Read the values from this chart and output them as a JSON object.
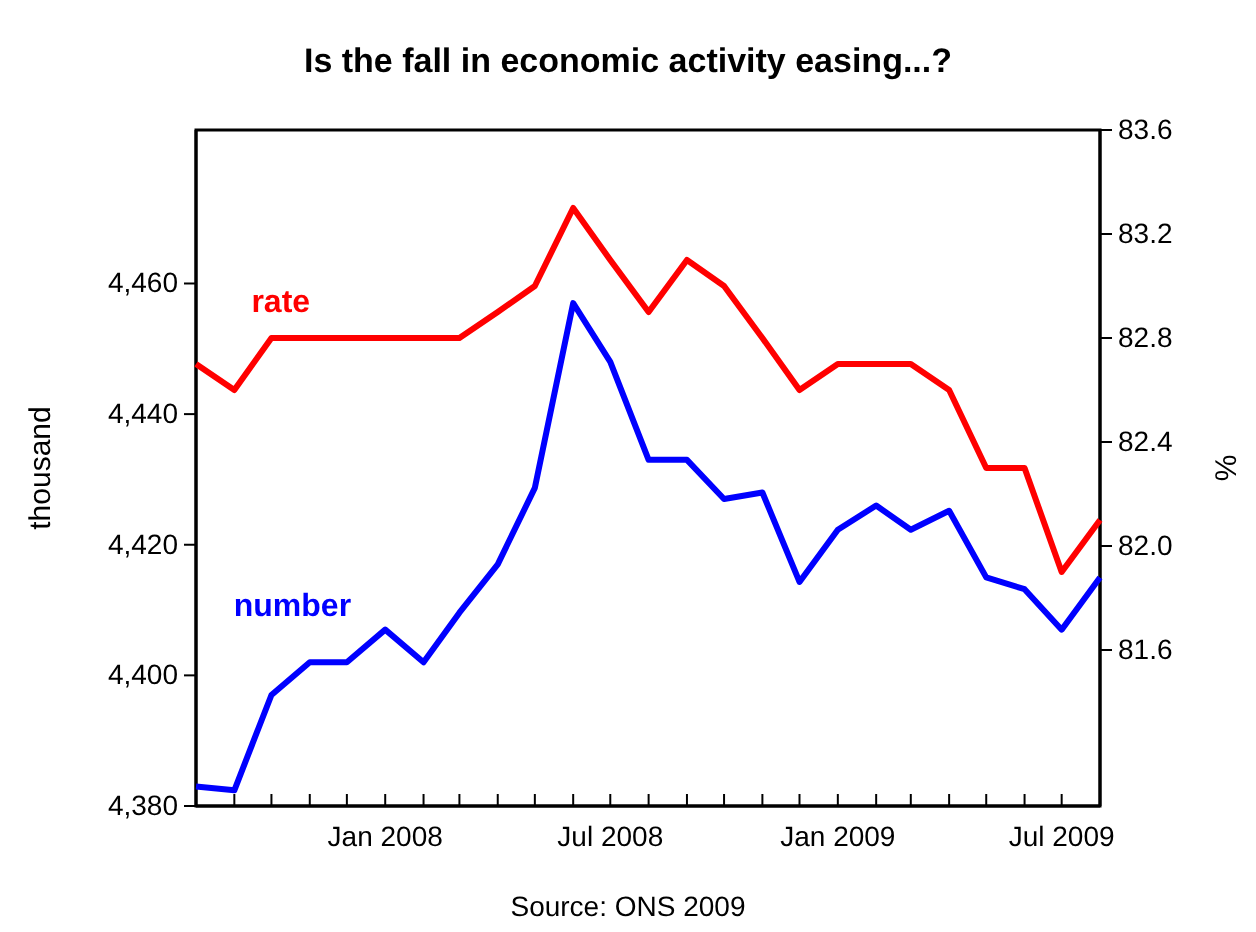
{
  "chart_data": {
    "type": "line",
    "title": "Is the fall in economic activity easing...?",
    "ylabel": "thousand",
    "y2label": "%",
    "annotations": [
      "Source: ONS 2009"
    ],
    "x": [
      "2007-08",
      "2007-09",
      "2007-10",
      "2007-11",
      "2007-12",
      "2008-01",
      "2008-02",
      "2008-03",
      "2008-04",
      "2008-05",
      "2008-06",
      "2008-07",
      "2008-08",
      "2008-09",
      "2008-10",
      "2008-11",
      "2008-12",
      "2009-01",
      "2009-02",
      "2009-03",
      "2009-04",
      "2009-05",
      "2009-06",
      "2009-07",
      "2009-08"
    ],
    "series": [
      {
        "name": "rate",
        "color": "#ff0000",
        "axis": "y2",
        "values": [
          82.7,
          82.6,
          82.8,
          82.8,
          82.8,
          82.8,
          82.8,
          82.8,
          82.9,
          83.0,
          83.3,
          83.1,
          82.9,
          83.1,
          83.0,
          82.8,
          82.6,
          82.7,
          82.7,
          82.7,
          82.6,
          82.3,
          82.3,
          81.9,
          82.1
        ]
      },
      {
        "name": "number",
        "color": "#0000ff",
        "values": [
          4383,
          4382.4,
          4397,
          4402,
          4402,
          4407,
          4402,
          4409.6,
          4417,
          4428.7,
          4457,
          4448,
          4433,
          4433,
          4427,
          4428,
          4414.3,
          4422.3,
          4426,
          4422.3,
          4425.2,
          4415,
          4413.2,
          4407,
          4415
        ]
      }
    ],
    "xlim": [
      "2007-08",
      "2009-08"
    ],
    "xticks": [
      {
        "value": "2007-09",
        "label": null
      },
      {
        "value": "2007-10",
        "label": null
      },
      {
        "value": "2007-11",
        "label": null
      },
      {
        "value": "2007-12",
        "label": null
      },
      {
        "value": "2008-01",
        "label": "Jan 2008"
      },
      {
        "value": "2008-02",
        "label": null
      },
      {
        "value": "2008-03",
        "label": null
      },
      {
        "value": "2008-04",
        "label": null
      },
      {
        "value": "2008-05",
        "label": null
      },
      {
        "value": "2008-06",
        "label": null
      },
      {
        "value": "2008-07",
        "label": "Jul 2008"
      },
      {
        "value": "2008-08",
        "label": null
      },
      {
        "value": "2008-09",
        "label": null
      },
      {
        "value": "2008-10",
        "label": null
      },
      {
        "value": "2008-11",
        "label": null
      },
      {
        "value": "2008-12",
        "label": null
      },
      {
        "value": "2009-01",
        "label": "Jan 2009"
      },
      {
        "value": "2009-02",
        "label": null
      },
      {
        "value": "2009-03",
        "label": null
      },
      {
        "value": "2009-04",
        "label": null
      },
      {
        "value": "2009-05",
        "label": null
      },
      {
        "value": "2009-06",
        "label": null
      },
      {
        "value": "2009-07",
        "label": "Jul 2009"
      }
    ],
    "ylim": [
      4380,
      4483.5
    ],
    "yticks": [
      {
        "value": 4380,
        "label": "4,380"
      },
      {
        "value": 4400,
        "label": "4,400"
      },
      {
        "value": 4420,
        "label": "4,420"
      },
      {
        "value": 4440,
        "label": "4,440"
      },
      {
        "value": 4460,
        "label": "4,460"
      }
    ],
    "y2lim": [
      81.0,
      83.6
    ],
    "y2ticks": [
      {
        "value": 81.6,
        "label": "81.6"
      },
      {
        "value": 82.0,
        "label": "82.0"
      },
      {
        "value": 82.4,
        "label": "82.4"
      },
      {
        "value": 82.8,
        "label": "82.8"
      },
      {
        "value": 83.2,
        "label": "83.2"
      },
      {
        "value": 83.6,
        "label": "83.6"
      }
    ],
    "grid": false,
    "legend": false,
    "line_style": "solid",
    "marker": "none"
  }
}
